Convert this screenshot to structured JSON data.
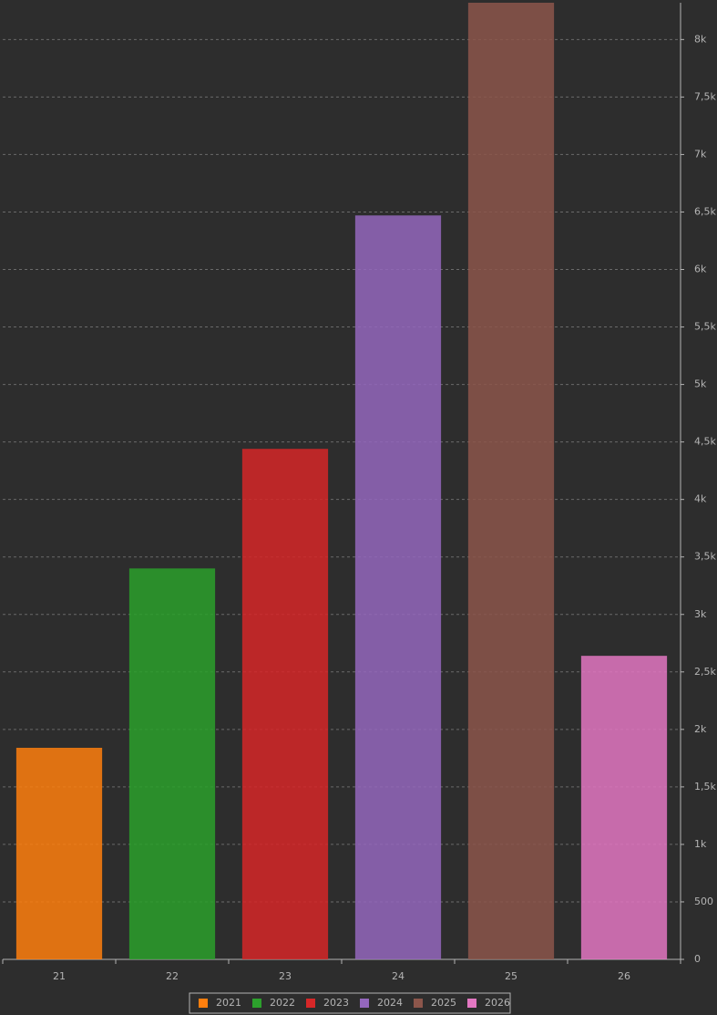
{
  "chart_data": {
    "type": "bar",
    "categories": [
      "21",
      "22",
      "23",
      "24",
      "25",
      "26"
    ],
    "series": [
      {
        "name": "2021",
        "color": "#ff7f0e",
        "values": [
          1840,
          null,
          null,
          null,
          null,
          null
        ]
      },
      {
        "name": "2022",
        "color": "#2ca02c",
        "values": [
          null,
          3400,
          null,
          null,
          null,
          null
        ]
      },
      {
        "name": "2023",
        "color": "#d62728",
        "values": [
          null,
          null,
          4440,
          null,
          null,
          null
        ]
      },
      {
        "name": "2024",
        "color": "#9467bd",
        "values": [
          null,
          null,
          null,
          6470,
          null,
          null
        ]
      },
      {
        "name": "2025",
        "color": "#8c564b",
        "values": [
          null,
          null,
          null,
          null,
          8320,
          null
        ]
      },
      {
        "name": "2026",
        "color": "#e377c2",
        "values": [
          null,
          null,
          null,
          null,
          null,
          2640
        ]
      }
    ],
    "ylim": [
      0,
      8320
    ],
    "yticks": [
      0,
      500,
      {
        "value": 1000,
        "label": "1k"
      },
      {
        "value": 1500,
        "label": "1,5k"
      },
      {
        "value": 2000,
        "label": "2k"
      },
      {
        "value": 2500,
        "label": "2,5k"
      },
      {
        "value": 3000,
        "label": "3k"
      },
      {
        "value": 3500,
        "label": "3,5k"
      },
      {
        "value": 4000,
        "label": "4k"
      },
      {
        "value": 4500,
        "label": "4,5k"
      },
      {
        "value": 5000,
        "label": "5k"
      },
      {
        "value": 5500,
        "label": "5,5k"
      },
      {
        "value": 6000,
        "label": "6k"
      },
      {
        "value": 6500,
        "label": "6,5k"
      },
      {
        "value": 7000,
        "label": "7k"
      },
      {
        "value": 7500,
        "label": "7,5k"
      },
      {
        "value": 8000,
        "label": "8k"
      }
    ],
    "y_axis_side": "right",
    "grid": true,
    "legend": "bottom"
  }
}
